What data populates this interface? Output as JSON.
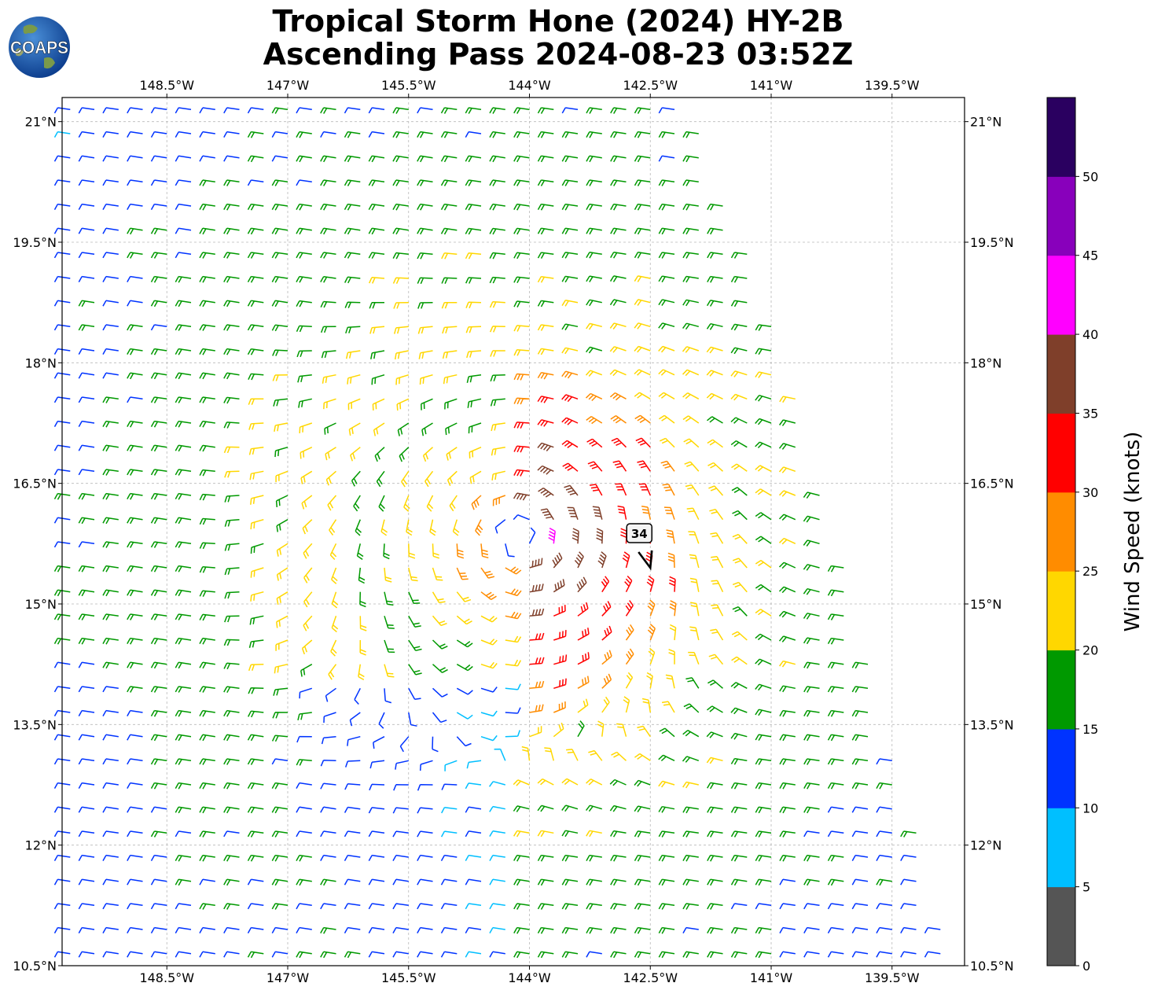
{
  "title": {
    "line1": "Tropical Storm Hone (2024) HY-2B",
    "line2": "Ascending Pass 2024-08-23 03:52Z"
  },
  "logo": {
    "text": "COAPS",
    "icon": "globe-logo-icon"
  },
  "map": {
    "extent": {
      "lon_min": -149.8,
      "lon_max": -138.6,
      "lat_min": 10.5,
      "lat_max": 21.3
    },
    "lon_ticks": [
      -148.5,
      -147,
      -145.5,
      -144,
      -142.5,
      -141,
      -139.5
    ],
    "lon_labels": [
      "148.5°W",
      "147°W",
      "145.5°W",
      "144°W",
      "142.5°W",
      "141°W",
      "139.5°W"
    ],
    "lat_ticks": [
      21,
      19.5,
      18,
      16.5,
      15,
      13.5,
      12,
      10.5
    ],
    "lat_labels": [
      "21°N",
      "19.5°N",
      "18°N",
      "16.5°N",
      "15°N",
      "13.5°N",
      "12°N",
      "10.5°N"
    ],
    "gridlines": true,
    "storm_center": {
      "lon": -144.1,
      "lat": 15.8
    },
    "max_wind_marker": {
      "label": "34",
      "lon": -142.5,
      "lat": 15.45
    }
  },
  "colorbar": {
    "title": "Wind Speed (knots)",
    "ticks": [
      "0",
      "5",
      "10",
      "15",
      "20",
      "25",
      "30",
      "35",
      "40",
      "45",
      "50"
    ],
    "colors": [
      "#555555",
      "#00bfff",
      "#0033ff",
      "#009900",
      "#ffd700",
      "#ff8c00",
      "#ff0000",
      "#7f3f2a",
      "#ff00ff",
      "#8800bb",
      "#2a0060"
    ]
  }
}
